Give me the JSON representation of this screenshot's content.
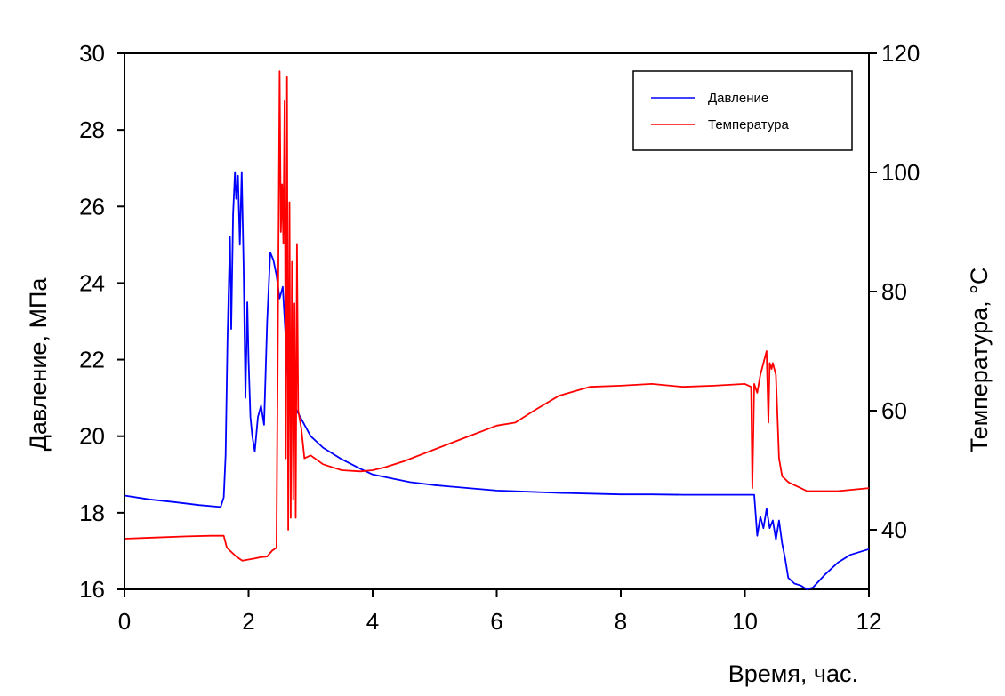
{
  "chart_data": {
    "type": "line",
    "title": "",
    "xlabel": "Время, час.",
    "ylabel_left": "Давление, МПа",
    "ylabel_right": "Температура, °C",
    "xlim": [
      0,
      12
    ],
    "ylim_left": [
      16,
      30
    ],
    "ylim_right": [
      30,
      120
    ],
    "x_ticks": [
      "0",
      "2",
      "4",
      "6",
      "8",
      "10",
      "12"
    ],
    "y_left_ticks": [
      "16",
      "18",
      "20",
      "22",
      "24",
      "26",
      "28",
      "30"
    ],
    "y_right_ticks": [
      "40",
      "60",
      "80",
      "100",
      "120"
    ],
    "grid": false,
    "legend_position": "top-right",
    "series": [
      {
        "name": "Давление",
        "axis": "left",
        "color": "#0000ff",
        "x": [
          0,
          0.4,
          0.8,
          1.2,
          1.55,
          1.6,
          1.63,
          1.66,
          1.7,
          1.72,
          1.75,
          1.78,
          1.8,
          1.83,
          1.86,
          1.89,
          1.92,
          1.95,
          1.98,
          2.0,
          2.03,
          2.06,
          2.1,
          2.15,
          2.2,
          2.25,
          2.3,
          2.35,
          2.4,
          2.45,
          2.5,
          2.55,
          2.6,
          2.65,
          2.7,
          2.8,
          2.9,
          3.0,
          3.2,
          3.5,
          3.8,
          4.0,
          4.3,
          4.6,
          5.0,
          5.5,
          6.0,
          6.5,
          7.0,
          7.5,
          8.0,
          8.5,
          9.0,
          9.5,
          10.0,
          10.15,
          10.2,
          10.25,
          10.3,
          10.35,
          10.4,
          10.45,
          10.5,
          10.55,
          10.6,
          10.65,
          10.7,
          10.8,
          10.9,
          11.0,
          11.1,
          11.3,
          11.5,
          11.7,
          12.0
        ],
        "values": [
          18.45,
          18.35,
          18.28,
          18.2,
          18.15,
          18.4,
          19.5,
          22.5,
          25.2,
          22.8,
          25.8,
          26.9,
          26.2,
          26.8,
          25.0,
          26.9,
          24.5,
          21.0,
          23.5,
          22.0,
          20.5,
          20.0,
          19.6,
          20.5,
          20.8,
          20.3,
          23.0,
          24.8,
          24.6,
          24.2,
          23.6,
          23.9,
          22.5,
          21.2,
          20.9,
          20.6,
          20.3,
          20.0,
          19.7,
          19.4,
          19.15,
          19.0,
          18.9,
          18.8,
          18.72,
          18.65,
          18.58,
          18.55,
          18.52,
          18.5,
          18.48,
          18.48,
          18.47,
          18.47,
          18.47,
          18.47,
          17.4,
          17.9,
          17.6,
          18.1,
          17.6,
          17.8,
          17.3,
          17.8,
          17.2,
          16.8,
          16.3,
          16.15,
          16.1,
          16.0,
          16.05,
          16.4,
          16.7,
          16.9,
          17.05
        ]
      },
      {
        "name": "Температура",
        "axis": "right",
        "color": "#ff0000",
        "x": [
          0,
          0.5,
          1.0,
          1.4,
          1.6,
          1.65,
          1.7,
          1.8,
          1.9,
          2.0,
          2.1,
          2.2,
          2.3,
          2.38,
          2.45,
          2.5,
          2.52,
          2.54,
          2.56,
          2.58,
          2.6,
          2.62,
          2.64,
          2.66,
          2.68,
          2.7,
          2.72,
          2.74,
          2.76,
          2.78,
          2.8,
          2.85,
          2.9,
          3.0,
          3.2,
          3.5,
          3.8,
          4.0,
          4.2,
          4.5,
          5.0,
          5.5,
          6.0,
          6.3,
          6.6,
          7.0,
          7.5,
          8.0,
          8.5,
          9.0,
          9.5,
          10.0,
          10.1,
          10.12,
          10.15,
          10.2,
          10.25,
          10.3,
          10.35,
          10.38,
          10.4,
          10.43,
          10.45,
          10.5,
          10.55,
          10.6,
          10.7,
          10.8,
          10.9,
          11.0,
          11.5,
          12.0
        ],
        "values": [
          38.5,
          38.7,
          38.9,
          39.0,
          39.0,
          37.0,
          36.5,
          35.5,
          34.8,
          35.0,
          35.2,
          35.4,
          35.5,
          36.5,
          37.0,
          117.0,
          90.0,
          98.0,
          88.0,
          112.0,
          52.0,
          116.0,
          40.0,
          95.0,
          42.0,
          85.0,
          45.0,
          78.0,
          42.0,
          88.0,
          60.0,
          57.0,
          52.0,
          52.5,
          51.0,
          50.0,
          49.8,
          50.0,
          50.5,
          51.5,
          53.5,
          55.5,
          57.5,
          58.0,
          60.0,
          62.5,
          64.0,
          64.2,
          64.5,
          64.0,
          64.2,
          64.5,
          64.0,
          47.0,
          64.5,
          63.0,
          66.0,
          68.0,
          70.0,
          58.0,
          68.0,
          67.0,
          68.0,
          66.0,
          52.0,
          49.0,
          48.0,
          47.5,
          47.0,
          46.5,
          46.5,
          47.0
        ]
      }
    ]
  }
}
